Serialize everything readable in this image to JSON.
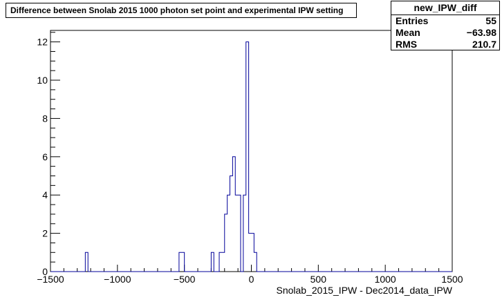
{
  "chart_data": {
    "type": "histogram",
    "title": "Difference between Snolab 2015 1000 photon set point and experimental IPW setting",
    "xlabel": "Snolab_2015_IPW - Dec2014_data_IPW",
    "ylabel": "",
    "xlim": [
      -1500,
      1500
    ],
    "ylim": [
      0,
      12.6
    ],
    "grid": false,
    "color": "#000099",
    "bin_width": 20,
    "x_ticks": [
      "−1500",
      "−1000",
      "−500",
      "0",
      "500",
      "1000",
      "1500"
    ],
    "x_tick_values": [
      -1500,
      -1000,
      -500,
      0,
      500,
      1000,
      1500
    ],
    "y_ticks": [
      "0",
      "2",
      "4",
      "6",
      "8",
      "10",
      "12"
    ],
    "y_tick_values": [
      0,
      2,
      4,
      6,
      8,
      10,
      12
    ],
    "bins": [
      {
        "x": -1230,
        "y": 1
      },
      {
        "x": -530,
        "y": 1
      },
      {
        "x": -510,
        "y": 1
      },
      {
        "x": -290,
        "y": 1
      },
      {
        "x": -230,
        "y": 1
      },
      {
        "x": -210,
        "y": 1
      },
      {
        "x": -190,
        "y": 3
      },
      {
        "x": -170,
        "y": 4
      },
      {
        "x": -150,
        "y": 5
      },
      {
        "x": -130,
        "y": 6
      },
      {
        "x": -110,
        "y": 4
      },
      {
        "x": -90,
        "y": 4
      },
      {
        "x": -50,
        "y": 4
      },
      {
        "x": -30,
        "y": 12
      },
      {
        "x": -10,
        "y": 2
      },
      {
        "x": 10,
        "y": 2
      },
      {
        "x": 30,
        "y": 1
      }
    ]
  },
  "stats": {
    "name": "new_IPW_diff",
    "rows": [
      {
        "label": "Entries",
        "value": "55"
      },
      {
        "label": "Mean",
        "value": "−63.98"
      },
      {
        "label": "RMS",
        "value": "210.7"
      }
    ]
  }
}
